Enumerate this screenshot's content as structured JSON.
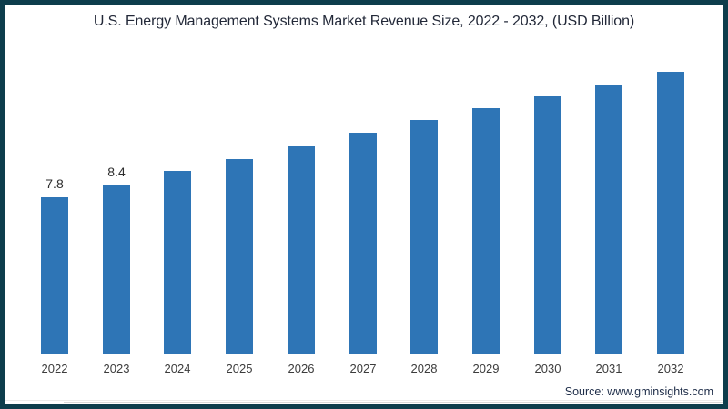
{
  "title": "U.S. Energy Management Systems Market Revenue Size, 2022 - 2032, (USD Billion)",
  "source": "Source: www.gminsights.com",
  "colors": {
    "bar": "#2e75b6",
    "frame_border": "#0d3d4c",
    "axis_line": "#d9d9d9",
    "title_text": "#222838",
    "tick_text": "#3c3c3c",
    "value_label_text": "#2d2d2d",
    "source_text": "#1c2b47",
    "background": "#ffffff"
  },
  "chart_data": {
    "type": "bar",
    "title": "U.S. Energy Management Systems Market Revenue Size, 2022 - 2032, (USD Billion)",
    "categories": [
      "2022",
      "2023",
      "2024",
      "2025",
      "2026",
      "2027",
      "2028",
      "2029",
      "2030",
      "2031",
      "2032"
    ],
    "values": [
      7.8,
      8.4,
      9.1,
      9.7,
      10.3,
      11.0,
      11.6,
      12.2,
      12.8,
      13.4,
      14.0
    ],
    "data_labels": [
      "7.8",
      "8.4",
      "",
      "",
      "",
      "",
      "",
      "",
      "",
      "",
      ""
    ],
    "xlabel": "",
    "ylabel": "",
    "ylim": [
      0,
      15
    ],
    "grid": false,
    "legend": false,
    "note": "Only the 2022 and 2023 bars display data labels in the image; remaining values are estimated from bar heights."
  }
}
